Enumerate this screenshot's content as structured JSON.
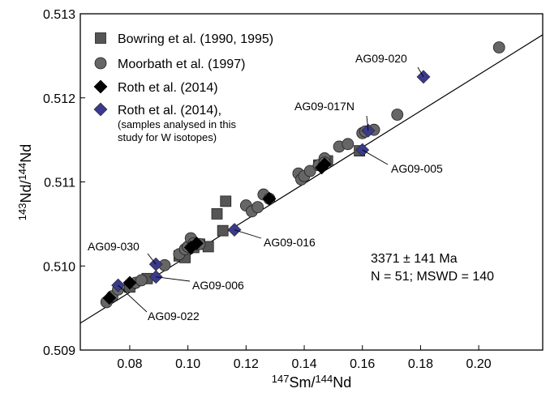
{
  "chart_data": {
    "type": "scatter",
    "xlabel": {
      "sup": "147",
      "main": "Sm/",
      "sup2": "144",
      "main2": "Nd"
    },
    "ylabel": {
      "sup": "143",
      "main": "Nd/",
      "sup2": "144",
      "main2": "Nd"
    },
    "xlim": [
      0.063,
      0.222
    ],
    "ylim": [
      0.509,
      0.513
    ],
    "xticks": [
      0.08,
      0.1,
      0.12,
      0.14,
      0.16,
      0.18,
      0.2
    ],
    "xtick_labels": [
      "0.08",
      "0.10",
      "0.12",
      "0.14",
      "0.16",
      "0.18",
      "0.20"
    ],
    "yticks": [
      0.509,
      0.51,
      0.511,
      0.512,
      0.513
    ],
    "ytick_labels": [
      "0.509",
      "0.510",
      "0.511",
      "0.512",
      "0.513"
    ],
    "grid": false,
    "legend_position": "top-left",
    "isochron": {
      "x": [
        0.063,
        0.222
      ],
      "y": [
        0.50932,
        0.51275
      ]
    },
    "stats_text": [
      "3371 ± 141 Ma",
      "N = 51; MSWD = 140"
    ],
    "series": [
      {
        "name": "Bowring et al. (1990, 1995)",
        "marker": "square",
        "color": "#555555",
        "points": [
          [
            0.08,
            0.50975
          ],
          [
            0.086,
            0.50985
          ],
          [
            0.097,
            0.51012
          ],
          [
            0.099,
            0.5101
          ],
          [
            0.102,
            0.51022
          ],
          [
            0.104,
            0.51026
          ],
          [
            0.107,
            0.51023
          ],
          [
            0.11,
            0.51062
          ],
          [
            0.112,
            0.51042
          ],
          [
            0.113,
            0.51077
          ],
          [
            0.145,
            0.5112
          ],
          [
            0.159,
            0.51137
          ],
          [
            0.148,
            0.51125
          ]
        ]
      },
      {
        "name": "Moorbath et al. (1997)",
        "marker": "circle",
        "color": "#666666",
        "points": [
          [
            0.072,
            0.50957
          ],
          [
            0.074,
            0.50964
          ],
          [
            0.076,
            0.50972
          ],
          [
            0.082,
            0.5098
          ],
          [
            0.084,
            0.50983
          ],
          [
            0.092,
            0.51001
          ],
          [
            0.097,
            0.51014
          ],
          [
            0.099,
            0.5102
          ],
          [
            0.1,
            0.51023
          ],
          [
            0.101,
            0.51033
          ],
          [
            0.102,
            0.51027
          ],
          [
            0.104,
            0.51026
          ],
          [
            0.12,
            0.51072
          ],
          [
            0.122,
            0.51065
          ],
          [
            0.124,
            0.5107
          ],
          [
            0.126,
            0.51085
          ],
          [
            0.128,
            0.5108
          ],
          [
            0.138,
            0.5111
          ],
          [
            0.139,
            0.51103
          ],
          [
            0.14,
            0.51107
          ],
          [
            0.142,
            0.51113
          ],
          [
            0.145,
            0.5112
          ],
          [
            0.147,
            0.51128
          ],
          [
            0.147,
            0.51123
          ],
          [
            0.152,
            0.51142
          ],
          [
            0.155,
            0.51145
          ],
          [
            0.16,
            0.51158
          ],
          [
            0.161,
            0.5116
          ],
          [
            0.164,
            0.51162
          ],
          [
            0.172,
            0.5118
          ],
          [
            0.207,
            0.5126
          ]
        ]
      },
      {
        "name": "Roth et al. (2014)",
        "marker": "diamond",
        "color": "#000000",
        "points": [
          [
            0.073,
            0.50962
          ],
          [
            0.08,
            0.5098
          ],
          [
            0.101,
            0.51022
          ],
          [
            0.103,
            0.51027
          ],
          [
            0.128,
            0.5108
          ],
          [
            0.146,
            0.51117
          ],
          [
            0.147,
            0.51121
          ]
        ]
      },
      {
        "name": "Roth et al. (2014),",
        "note": [
          "(samples analysed in this",
          "study for W isotopes)"
        ],
        "marker": "diamond",
        "color": "#3a3a8c",
        "points": [
          [
            0.076,
            0.50977,
            "AG09-022"
          ],
          [
            0.089,
            0.51002,
            "AG09-030"
          ],
          [
            0.089,
            0.50987,
            "AG09-006"
          ],
          [
            0.116,
            0.51043,
            "AG09-016"
          ],
          [
            0.16,
            0.51138,
            "AG09-005"
          ],
          [
            0.162,
            0.51161,
            "AG09-017N"
          ],
          [
            0.181,
            0.51225,
            "AG09-020"
          ]
        ]
      }
    ],
    "annotations": [
      {
        "text": "AG09-020",
        "target": [
          0.181,
          0.51225
        ]
      },
      {
        "text": "AG09-017N",
        "target": [
          0.162,
          0.51161
        ]
      },
      {
        "text": "AG09-005",
        "target": [
          0.16,
          0.51138
        ]
      },
      {
        "text": "AG09-016",
        "target": [
          0.116,
          0.51043
        ]
      },
      {
        "text": "AG09-030",
        "target": [
          0.089,
          0.51002
        ]
      },
      {
        "text": "AG09-006",
        "target": [
          0.089,
          0.50987
        ]
      },
      {
        "text": "AG09-022",
        "target": [
          0.076,
          0.50977
        ]
      }
    ]
  }
}
